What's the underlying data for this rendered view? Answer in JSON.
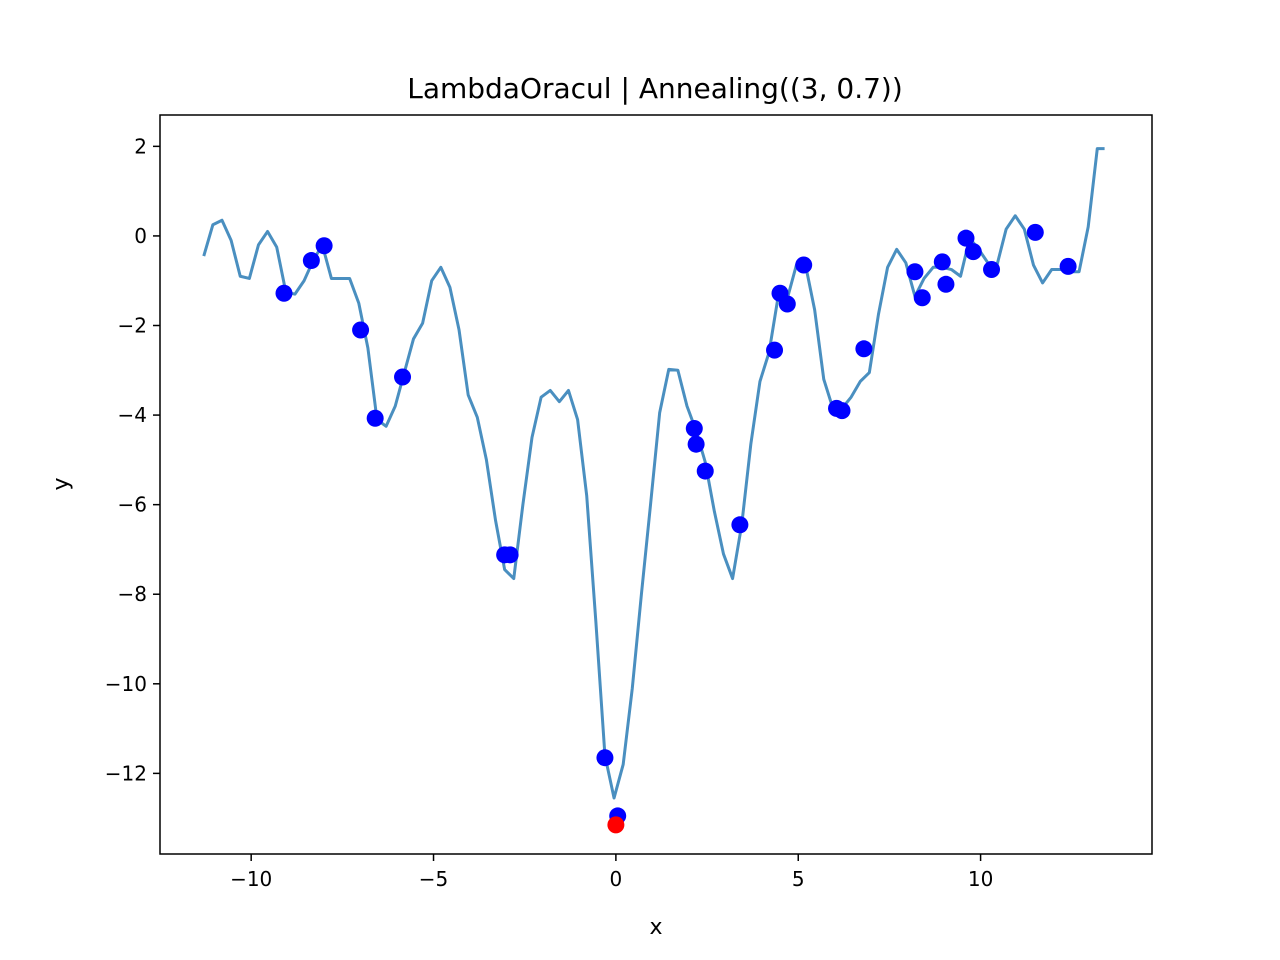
{
  "chart_data": {
    "type": "line",
    "title": "LambdaOracul | Annealing((3, 0.7))",
    "xlabel": "x",
    "ylabel": "y",
    "xlim": [
      -12.5,
      14.7
    ],
    "ylim": [
      -13.8,
      2.7
    ],
    "grid": false,
    "xticks": [
      -10,
      -5,
      0,
      5,
      10
    ],
    "yticks": [
      2,
      0,
      -2,
      -4,
      -6,
      -8,
      -10,
      -12
    ],
    "xtick_labels": [
      "−10",
      "−5",
      "0",
      "5",
      "10"
    ],
    "ytick_labels": [
      "2",
      "0",
      "−2",
      "−4",
      "−6",
      "−8",
      "−10",
      "−12"
    ],
    "colors": {
      "line": "#4a8fc0",
      "points": "#0000ff",
      "best_point": "#ff0000"
    },
    "series": [
      {
        "type": "line",
        "x": [
          -11.3,
          -11.05,
          -10.8,
          -10.55,
          -10.3,
          -10.05,
          -9.8,
          -9.55,
          -9.3,
          -9.05,
          -8.8,
          -8.55,
          -8.3,
          -8.05,
          -7.8,
          -7.55,
          -7.3,
          -7.05,
          -6.8,
          -6.55,
          -6.3,
          -6.05,
          -5.8,
          -5.55,
          -5.3,
          -5.05,
          -4.8,
          -4.55,
          -4.3,
          -4.05,
          -3.8,
          -3.55,
          -3.3,
          -3.05,
          -2.8,
          -2.55,
          -2.3,
          -2.05,
          -1.8,
          -1.55,
          -1.3,
          -1.05,
          -0.8,
          -0.55,
          -0.3,
          -0.05,
          0.2,
          0.45,
          0.7,
          0.95,
          1.2,
          1.45,
          1.7,
          1.95,
          2.2,
          2.45,
          2.7,
          2.95,
          3.2,
          3.45,
          3.7,
          3.95,
          4.2,
          4.45,
          4.7,
          4.95,
          5.2,
          5.45,
          5.7,
          5.95,
          6.2,
          6.45,
          6.7,
          6.95,
          7.2,
          7.45,
          7.7,
          7.95,
          8.2,
          8.45,
          8.7,
          8.95,
          9.2,
          9.45,
          9.7,
          9.95,
          10.2,
          10.45,
          10.7,
          10.95,
          11.2,
          11.45,
          11.7,
          11.95,
          12.2,
          12.45,
          12.7,
          12.95,
          13.2,
          13.4
        ],
        "y": [
          -0.45,
          0.25,
          0.35,
          -0.1,
          -0.9,
          -0.95,
          -0.2,
          0.1,
          -0.25,
          -1.25,
          -1.3,
          -1.0,
          -0.55,
          -0.2,
          -0.95,
          -0.95,
          -0.95,
          -1.5,
          -2.5,
          -4.1,
          -4.25,
          -3.8,
          -3.05,
          -2.3,
          -1.95,
          -1.0,
          -0.7,
          -1.15,
          -2.1,
          -3.55,
          -4.05,
          -5.0,
          -6.35,
          -7.45,
          -7.65,
          -6.0,
          -4.5,
          -3.6,
          -3.45,
          -3.7,
          -3.45,
          -4.1,
          -5.8,
          -8.6,
          -11.6,
          -12.55,
          -11.8,
          -10.1,
          -8.0,
          -6.0,
          -3.95,
          -2.98,
          -3.0,
          -3.8,
          -4.35,
          -5.05,
          -6.15,
          -7.1,
          -7.65,
          -6.45,
          -4.65,
          -3.25,
          -2.6,
          -1.35,
          -1.4,
          -0.65,
          -0.65,
          -1.65,
          -3.2,
          -3.85,
          -3.85,
          -3.6,
          -3.25,
          -3.05,
          -1.75,
          -0.7,
          -0.3,
          -0.6,
          -1.35,
          -0.95,
          -0.7,
          -0.7,
          -0.75,
          -0.9,
          -0.05,
          -0.3,
          -0.6,
          -0.65,
          0.15,
          0.45,
          0.15,
          -0.65,
          -1.05,
          -0.75,
          -0.75,
          -0.8,
          -0.8,
          0.2,
          1.95,
          1.95
        ]
      },
      {
        "type": "scatter",
        "x": [
          -9.1,
          -8.35,
          -8.0,
          -7.0,
          -6.6,
          -5.85,
          -3.05,
          -2.9,
          -0.3,
          0.05,
          2.15,
          2.2,
          2.45,
          3.4,
          4.35,
          4.5,
          4.7,
          5.15,
          6.05,
          6.2,
          6.8,
          8.2,
          8.4,
          8.95,
          9.05,
          9.6,
          9.8,
          10.3,
          11.5,
          12.4
        ],
        "y": [
          -1.28,
          -0.55,
          -0.22,
          -2.1,
          -4.07,
          -3.15,
          -7.12,
          -7.12,
          -11.65,
          -12.95,
          -4.3,
          -4.65,
          -5.25,
          -6.45,
          -2.55,
          -1.28,
          -1.52,
          -0.65,
          -3.85,
          -3.9,
          -2.52,
          -0.8,
          -1.38,
          -0.58,
          -1.08,
          -0.05,
          -0.35,
          -0.75,
          0.08,
          -0.68
        ]
      },
      {
        "type": "scatter",
        "x": [
          0.0
        ],
        "y": [
          -13.15
        ]
      }
    ]
  }
}
